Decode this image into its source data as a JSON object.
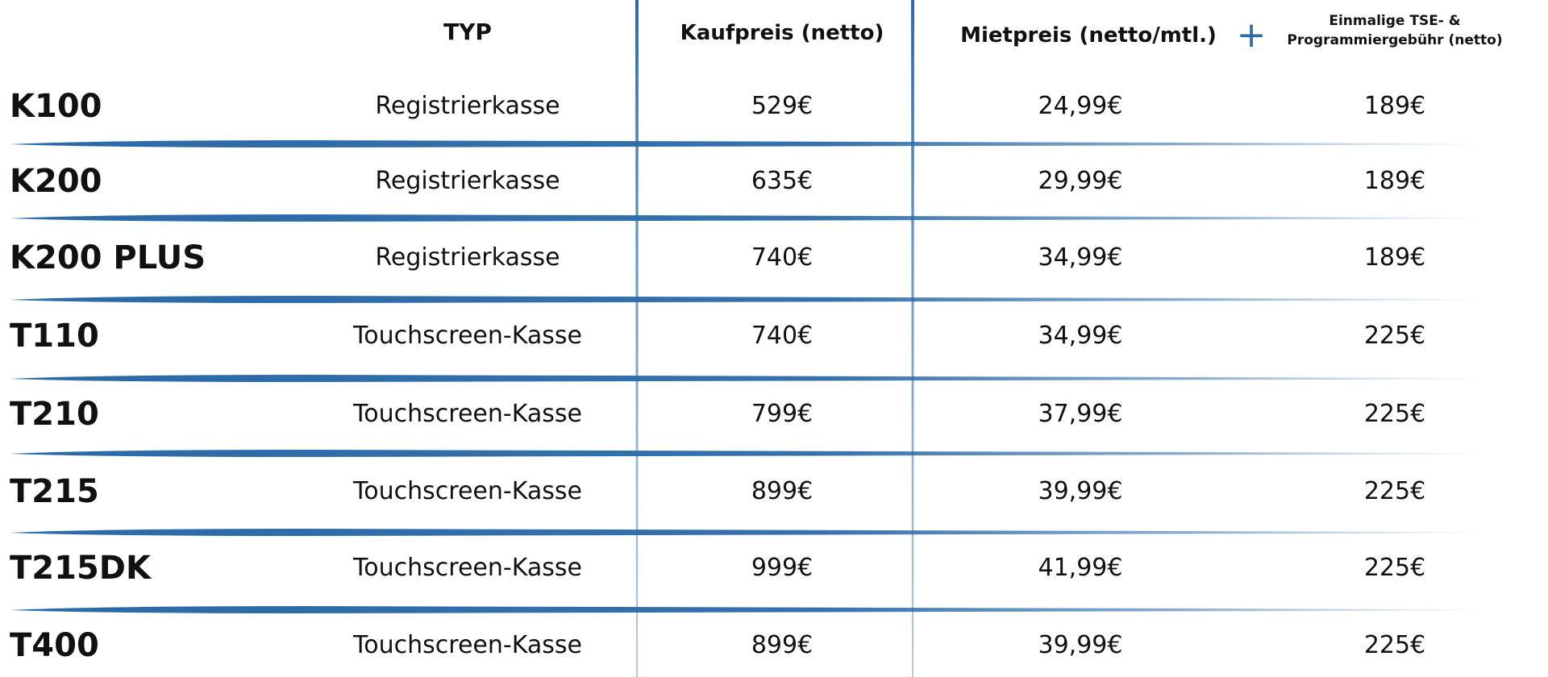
{
  "colors": {
    "accent": "#2b6aa8",
    "text": "#111111",
    "background": "#ffffff"
  },
  "header": {
    "typ": "TYP",
    "kaufpreis": "Kaufpreis (netto)",
    "mietpreis": "Mietpreis (netto/mtl.)",
    "plus_icon": "plus-icon",
    "plus_glyph": "+",
    "tse_line1": "Einmalige TSE- &",
    "tse_line2": "Programmiergebühr (netto)"
  },
  "rows": [
    {
      "model": "K100",
      "typ": "Registrierkasse",
      "kaufpreis": "529€",
      "mietpreis": "24,99€",
      "tse": "189€"
    },
    {
      "model": "K200",
      "typ": "Registrierkasse",
      "kaufpreis": "635€",
      "mietpreis": "29,99€",
      "tse": "189€"
    },
    {
      "model": "K200 PLUS",
      "typ": "Registrierkasse",
      "kaufpreis": "740€",
      "mietpreis": "34,99€",
      "tse": "189€"
    },
    {
      "model": "T110",
      "typ": "Touchscreen-Kasse",
      "kaufpreis": "740€",
      "mietpreis": "34,99€",
      "tse": "225€"
    },
    {
      "model": "T210",
      "typ": "Touchscreen-Kasse",
      "kaufpreis": "799€",
      "mietpreis": "37,99€",
      "tse": "225€"
    },
    {
      "model": "T215",
      "typ": "Touchscreen-Kasse",
      "kaufpreis": "899€",
      "mietpreis": "39,99€",
      "tse": "225€"
    },
    {
      "model": "T215DK",
      "typ": "Touchscreen-Kasse",
      "kaufpreis": "999€",
      "mietpreis": "41,99€",
      "tse": "225€"
    },
    {
      "model": "T400",
      "typ": "Touchscreen-Kasse",
      "kaufpreis": "899€",
      "mietpreis": "39,99€",
      "tse": "225€"
    }
  ]
}
